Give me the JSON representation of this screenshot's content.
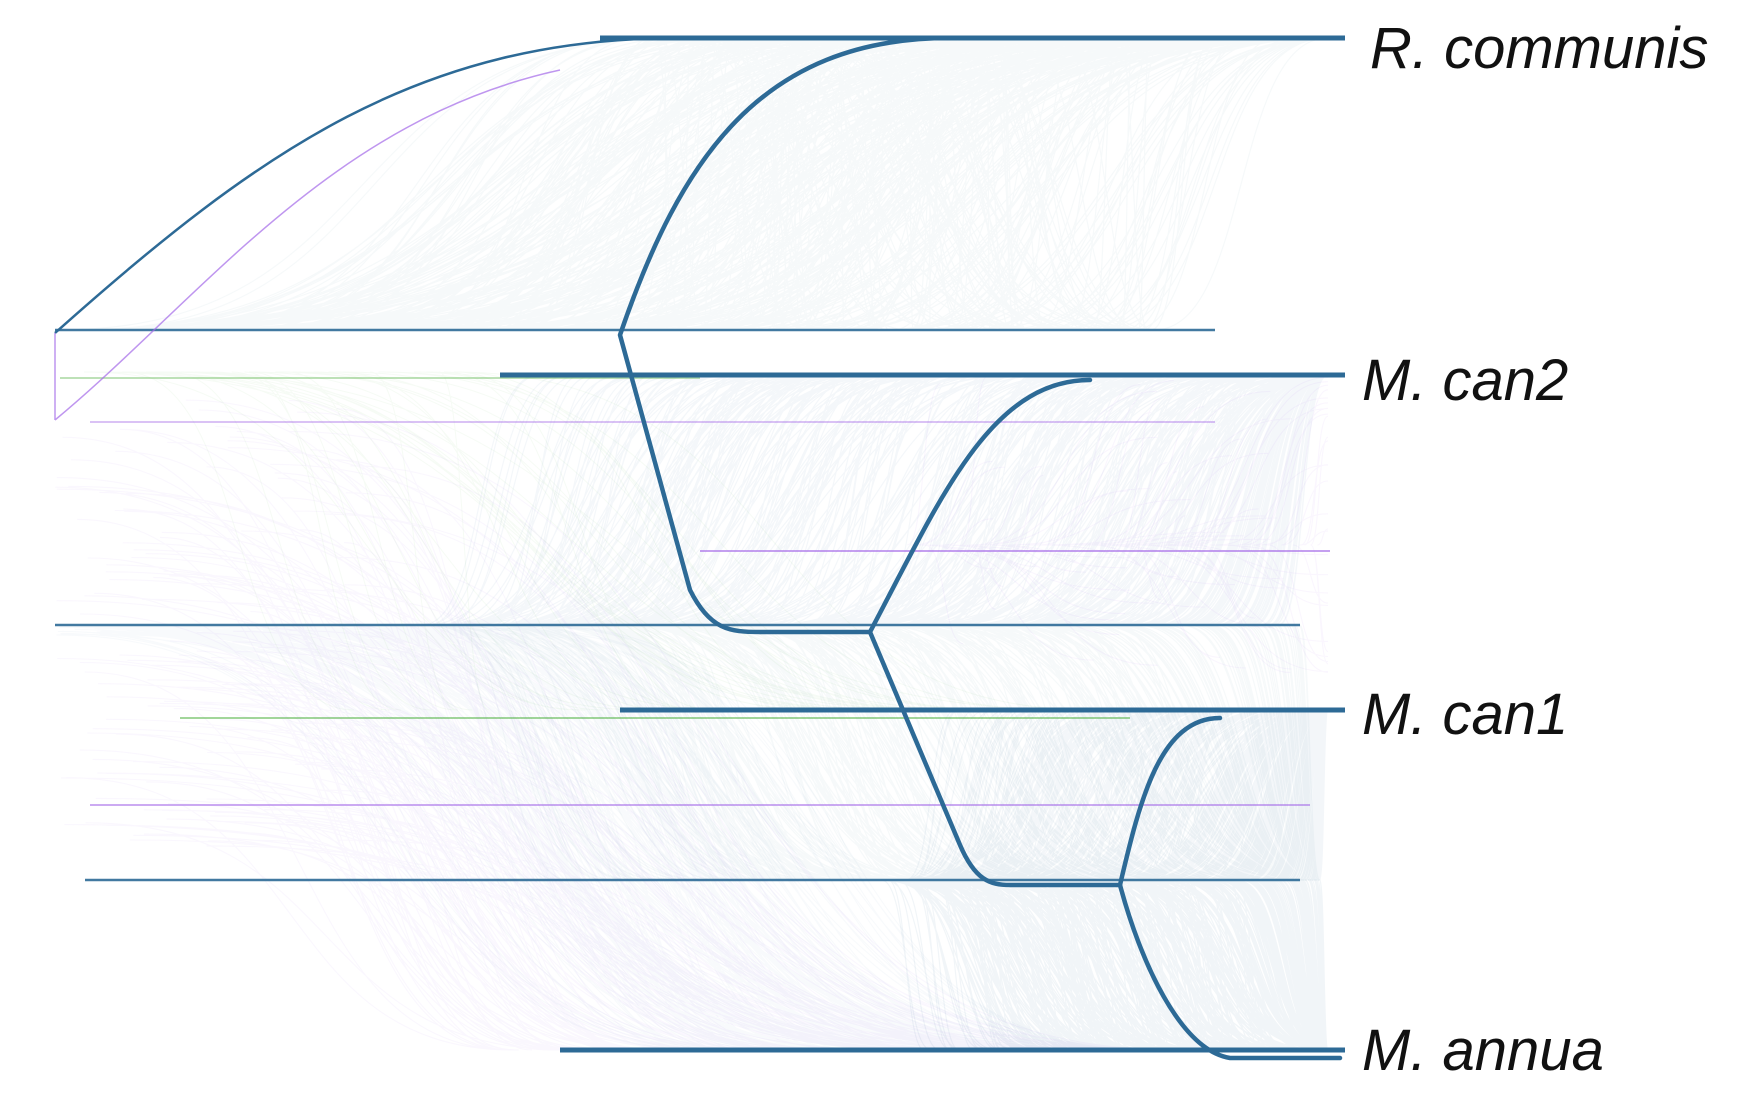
{
  "species": [
    {
      "id": "r-communis",
      "label": "R. communis"
    },
    {
      "id": "m-can2",
      "label": "M. can2"
    },
    {
      "id": "m-can1",
      "label": "M. can1"
    },
    {
      "id": "m-annua",
      "label": "M. annua"
    }
  ],
  "colors": {
    "collinear": "#2d6a96",
    "collinear_faint": "#8fb0c6",
    "purple_links": "#a46ae8",
    "green_links": "#4fb040",
    "background": "#ffffff"
  }
}
